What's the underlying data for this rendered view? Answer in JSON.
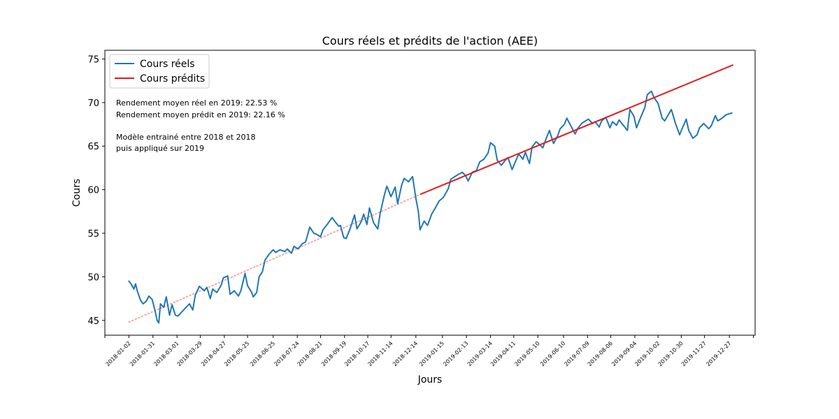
{
  "chart_data": {
    "type": "line",
    "title": "Cours réels et prédits de l'action (AEE)",
    "xlabel": "Jours",
    "ylabel": "Cours",
    "xlim": [
      "2017-12-04",
      "2020-01-27"
    ],
    "ylim": [
      43.3,
      76.0
    ],
    "y_ticks": [
      45,
      50,
      55,
      60,
      65,
      70,
      75
    ],
    "x_tick_labels": [
      "2018-01-02",
      "2018-01-31",
      "2018-03-01",
      "2018-03-29",
      "2018-04-27",
      "2018-05-25",
      "2018-06-25",
      "2018-07-24",
      "2018-08-21",
      "2018-09-19",
      "2018-10-17",
      "2018-11-14",
      "2018-12-14",
      "2019-01-15",
      "2019-02-13",
      "2019-03-14",
      "2019-04-11",
      "2019-05-10",
      "2019-06-10",
      "2019-07-09",
      "2019-08-06",
      "2019-09-04",
      "2019-10-02",
      "2019-10-30",
      "2019-11-27",
      "2019-12-27"
    ],
    "legend": {
      "placement": "top-left"
    },
    "grid": false,
    "series": [
      {
        "name": "Cours réels",
        "color": "#1f77b4",
        "style": "solid",
        "points": [
          [
            "2018-01-02",
            49.5
          ],
          [
            "2018-01-05",
            49.1
          ],
          [
            "2018-01-08",
            48.6
          ],
          [
            "2018-01-10",
            49.2
          ],
          [
            "2018-01-12",
            48.4
          ],
          [
            "2018-01-16",
            47.3
          ],
          [
            "2018-01-19",
            46.9
          ],
          [
            "2018-01-23",
            47.2
          ],
          [
            "2018-01-26",
            47.8
          ],
          [
            "2018-01-30",
            47.4
          ],
          [
            "2018-02-02",
            46.3
          ],
          [
            "2018-02-05",
            45.0
          ],
          [
            "2018-02-07",
            44.7
          ],
          [
            "2018-02-09",
            46.9
          ],
          [
            "2018-02-13",
            46.5
          ],
          [
            "2018-02-16",
            47.7
          ],
          [
            "2018-02-20",
            45.6
          ],
          [
            "2018-02-23",
            46.8
          ],
          [
            "2018-02-27",
            45.6
          ],
          [
            "2018-03-02",
            45.5
          ],
          [
            "2018-03-07",
            46.0
          ],
          [
            "2018-03-12",
            46.5
          ],
          [
            "2018-03-16",
            46.9
          ],
          [
            "2018-03-20",
            46.2
          ],
          [
            "2018-03-23",
            47.9
          ],
          [
            "2018-03-28",
            48.9
          ],
          [
            "2018-04-03",
            48.4
          ],
          [
            "2018-04-06",
            48.8
          ],
          [
            "2018-04-10",
            47.5
          ],
          [
            "2018-04-13",
            48.6
          ],
          [
            "2018-04-18",
            48.2
          ],
          [
            "2018-04-23",
            49.0
          ],
          [
            "2018-04-26",
            49.9
          ],
          [
            "2018-05-01",
            50.1
          ],
          [
            "2018-05-04",
            48.0
          ],
          [
            "2018-05-09",
            48.4
          ],
          [
            "2018-05-14",
            47.8
          ],
          [
            "2018-05-17",
            48.4
          ],
          [
            "2018-05-22",
            50.4
          ],
          [
            "2018-05-25",
            49.0
          ],
          [
            "2018-05-30",
            48.2
          ],
          [
            "2018-06-01",
            47.7
          ],
          [
            "2018-06-05",
            48.2
          ],
          [
            "2018-06-08",
            50.0
          ],
          [
            "2018-06-12",
            50.6
          ],
          [
            "2018-06-15",
            51.9
          ],
          [
            "2018-06-20",
            52.6
          ],
          [
            "2018-06-25",
            53.1
          ],
          [
            "2018-06-28",
            52.8
          ],
          [
            "2018-07-03",
            53.1
          ],
          [
            "2018-07-09",
            52.9
          ],
          [
            "2018-07-12",
            53.2
          ],
          [
            "2018-07-17",
            52.7
          ],
          [
            "2018-07-20",
            53.5
          ],
          [
            "2018-07-25",
            53.2
          ],
          [
            "2018-07-30",
            53.8
          ],
          [
            "2018-08-03",
            54.0
          ],
          [
            "2018-08-08",
            55.7
          ],
          [
            "2018-08-13",
            55.0
          ],
          [
            "2018-08-16",
            54.9
          ],
          [
            "2018-08-21",
            54.6
          ],
          [
            "2018-08-24",
            55.4
          ],
          [
            "2018-08-29",
            56.0
          ],
          [
            "2018-09-04",
            56.8
          ],
          [
            "2018-09-07",
            56.4
          ],
          [
            "2018-09-12",
            55.8
          ],
          [
            "2018-09-14",
            55.9
          ],
          [
            "2018-09-18",
            54.5
          ],
          [
            "2018-09-21",
            54.4
          ],
          [
            "2018-09-26",
            55.6
          ],
          [
            "2018-10-01",
            57.1
          ],
          [
            "2018-10-04",
            55.5
          ],
          [
            "2018-10-09",
            56.3
          ],
          [
            "2018-10-12",
            57.2
          ],
          [
            "2018-10-16",
            56.0
          ],
          [
            "2018-10-19",
            57.9
          ],
          [
            "2018-10-24",
            56.2
          ],
          [
            "2018-10-29",
            55.5
          ],
          [
            "2018-11-01",
            57.3
          ],
          [
            "2018-11-06",
            59.4
          ],
          [
            "2018-11-09",
            60.4
          ],
          [
            "2018-11-14",
            59.2
          ],
          [
            "2018-11-19",
            60.3
          ],
          [
            "2018-11-22",
            58.4
          ],
          [
            "2018-11-27",
            60.6
          ],
          [
            "2018-11-30",
            61.3
          ],
          [
            "2018-12-05",
            60.9
          ],
          [
            "2018-12-10",
            61.5
          ],
          [
            "2018-12-14",
            59.0
          ],
          [
            "2018-12-17",
            57.5
          ],
          [
            "2018-12-19",
            55.4
          ],
          [
            "2018-12-24",
            56.4
          ],
          [
            "2018-12-28",
            55.9
          ],
          [
            "2019-01-02",
            57.2
          ],
          [
            "2019-01-07",
            58.0
          ],
          [
            "2019-01-11",
            58.7
          ],
          [
            "2019-01-16",
            59.1
          ],
          [
            "2019-01-22",
            60.1
          ],
          [
            "2019-01-25",
            61.2
          ],
          [
            "2019-01-30",
            61.5
          ],
          [
            "2019-02-04",
            61.8
          ],
          [
            "2019-02-08",
            62.0
          ],
          [
            "2019-02-12",
            61.6
          ],
          [
            "2019-02-15",
            61.0
          ],
          [
            "2019-02-20",
            62.0
          ],
          [
            "2019-02-25",
            62.2
          ],
          [
            "2019-03-01",
            63.2
          ],
          [
            "2019-03-06",
            63.5
          ],
          [
            "2019-03-11",
            64.2
          ],
          [
            "2019-03-14",
            65.4
          ],
          [
            "2019-03-19",
            65.0
          ],
          [
            "2019-03-22",
            63.4
          ],
          [
            "2019-03-27",
            62.8
          ],
          [
            "2019-04-01",
            63.4
          ],
          [
            "2019-04-04",
            63.7
          ],
          [
            "2019-04-09",
            62.3
          ],
          [
            "2019-04-12",
            63.0
          ],
          [
            "2019-04-17",
            64.1
          ],
          [
            "2019-04-22",
            63.5
          ],
          [
            "2019-04-25",
            64.3
          ],
          [
            "2019-04-30",
            63.0
          ],
          [
            "2019-05-03",
            64.9
          ],
          [
            "2019-05-08",
            65.5
          ],
          [
            "2019-05-13",
            65.1
          ],
          [
            "2019-05-16",
            64.8
          ],
          [
            "2019-05-21",
            66.1
          ],
          [
            "2019-05-24",
            66.8
          ],
          [
            "2019-05-29",
            65.3
          ],
          [
            "2019-06-03",
            66.2
          ],
          [
            "2019-06-06",
            67.0
          ],
          [
            "2019-06-11",
            67.5
          ],
          [
            "2019-06-14",
            68.2
          ],
          [
            "2019-06-19",
            67.3
          ],
          [
            "2019-06-24",
            66.4
          ],
          [
            "2019-06-27",
            67.0
          ],
          [
            "2019-07-02",
            67.6
          ],
          [
            "2019-07-05",
            67.8
          ],
          [
            "2019-07-10",
            68.1
          ],
          [
            "2019-07-15",
            67.6
          ],
          [
            "2019-07-18",
            67.8
          ],
          [
            "2019-07-23",
            67.2
          ],
          [
            "2019-07-26",
            67.9
          ],
          [
            "2019-07-31",
            68.3
          ],
          [
            "2019-08-05",
            67.1
          ],
          [
            "2019-08-08",
            67.8
          ],
          [
            "2019-08-13",
            67.4
          ],
          [
            "2019-08-16",
            68.0
          ],
          [
            "2019-08-21",
            67.4
          ],
          [
            "2019-08-26",
            66.8
          ],
          [
            "2019-08-29",
            69.2
          ],
          [
            "2019-09-03",
            68.4
          ],
          [
            "2019-09-06",
            67.1
          ],
          [
            "2019-09-11",
            68.3
          ],
          [
            "2019-09-16",
            69.4
          ],
          [
            "2019-09-19",
            70.9
          ],
          [
            "2019-09-24",
            71.3
          ],
          [
            "2019-09-27",
            70.6
          ],
          [
            "2019-10-02",
            69.9
          ],
          [
            "2019-10-07",
            68.2
          ],
          [
            "2019-10-10",
            67.9
          ],
          [
            "2019-10-15",
            68.7
          ],
          [
            "2019-10-18",
            69.2
          ],
          [
            "2019-10-23",
            67.6
          ],
          [
            "2019-10-28",
            66.3
          ],
          [
            "2019-10-31",
            67.0
          ],
          [
            "2019-11-05",
            68.1
          ],
          [
            "2019-11-08",
            66.8
          ],
          [
            "2019-11-13",
            65.9
          ],
          [
            "2019-11-18",
            66.3
          ],
          [
            "2019-11-21",
            67.1
          ],
          [
            "2019-11-26",
            67.6
          ],
          [
            "2019-12-02",
            67.0
          ],
          [
            "2019-12-05",
            67.3
          ],
          [
            "2019-12-10",
            68.5
          ],
          [
            "2019-12-13",
            67.9
          ],
          [
            "2019-12-18",
            68.2
          ],
          [
            "2019-12-23",
            68.6
          ],
          [
            "2019-12-30",
            68.8
          ]
        ]
      },
      {
        "name": "Cours prédits",
        "color": "#e31a1c",
        "style": "solid",
        "points": [
          [
            "2018-12-20",
            59.5
          ],
          [
            "2019-12-31",
            74.3
          ]
        ]
      },
      {
        "color": "#f5a3a3",
        "style": "dotted",
        "points": [
          [
            "2018-01-02",
            44.8
          ],
          [
            "2018-12-20",
            59.5
          ]
        ]
      }
    ],
    "annotations": [
      "Rendement moyen réel en 2019: 22.53 %",
      "Rendement moyen prédit en 2019: 22.16 %",
      "Modèle entrainé entre 2018 et 2018",
      "puis appliqué sur 2019"
    ]
  }
}
